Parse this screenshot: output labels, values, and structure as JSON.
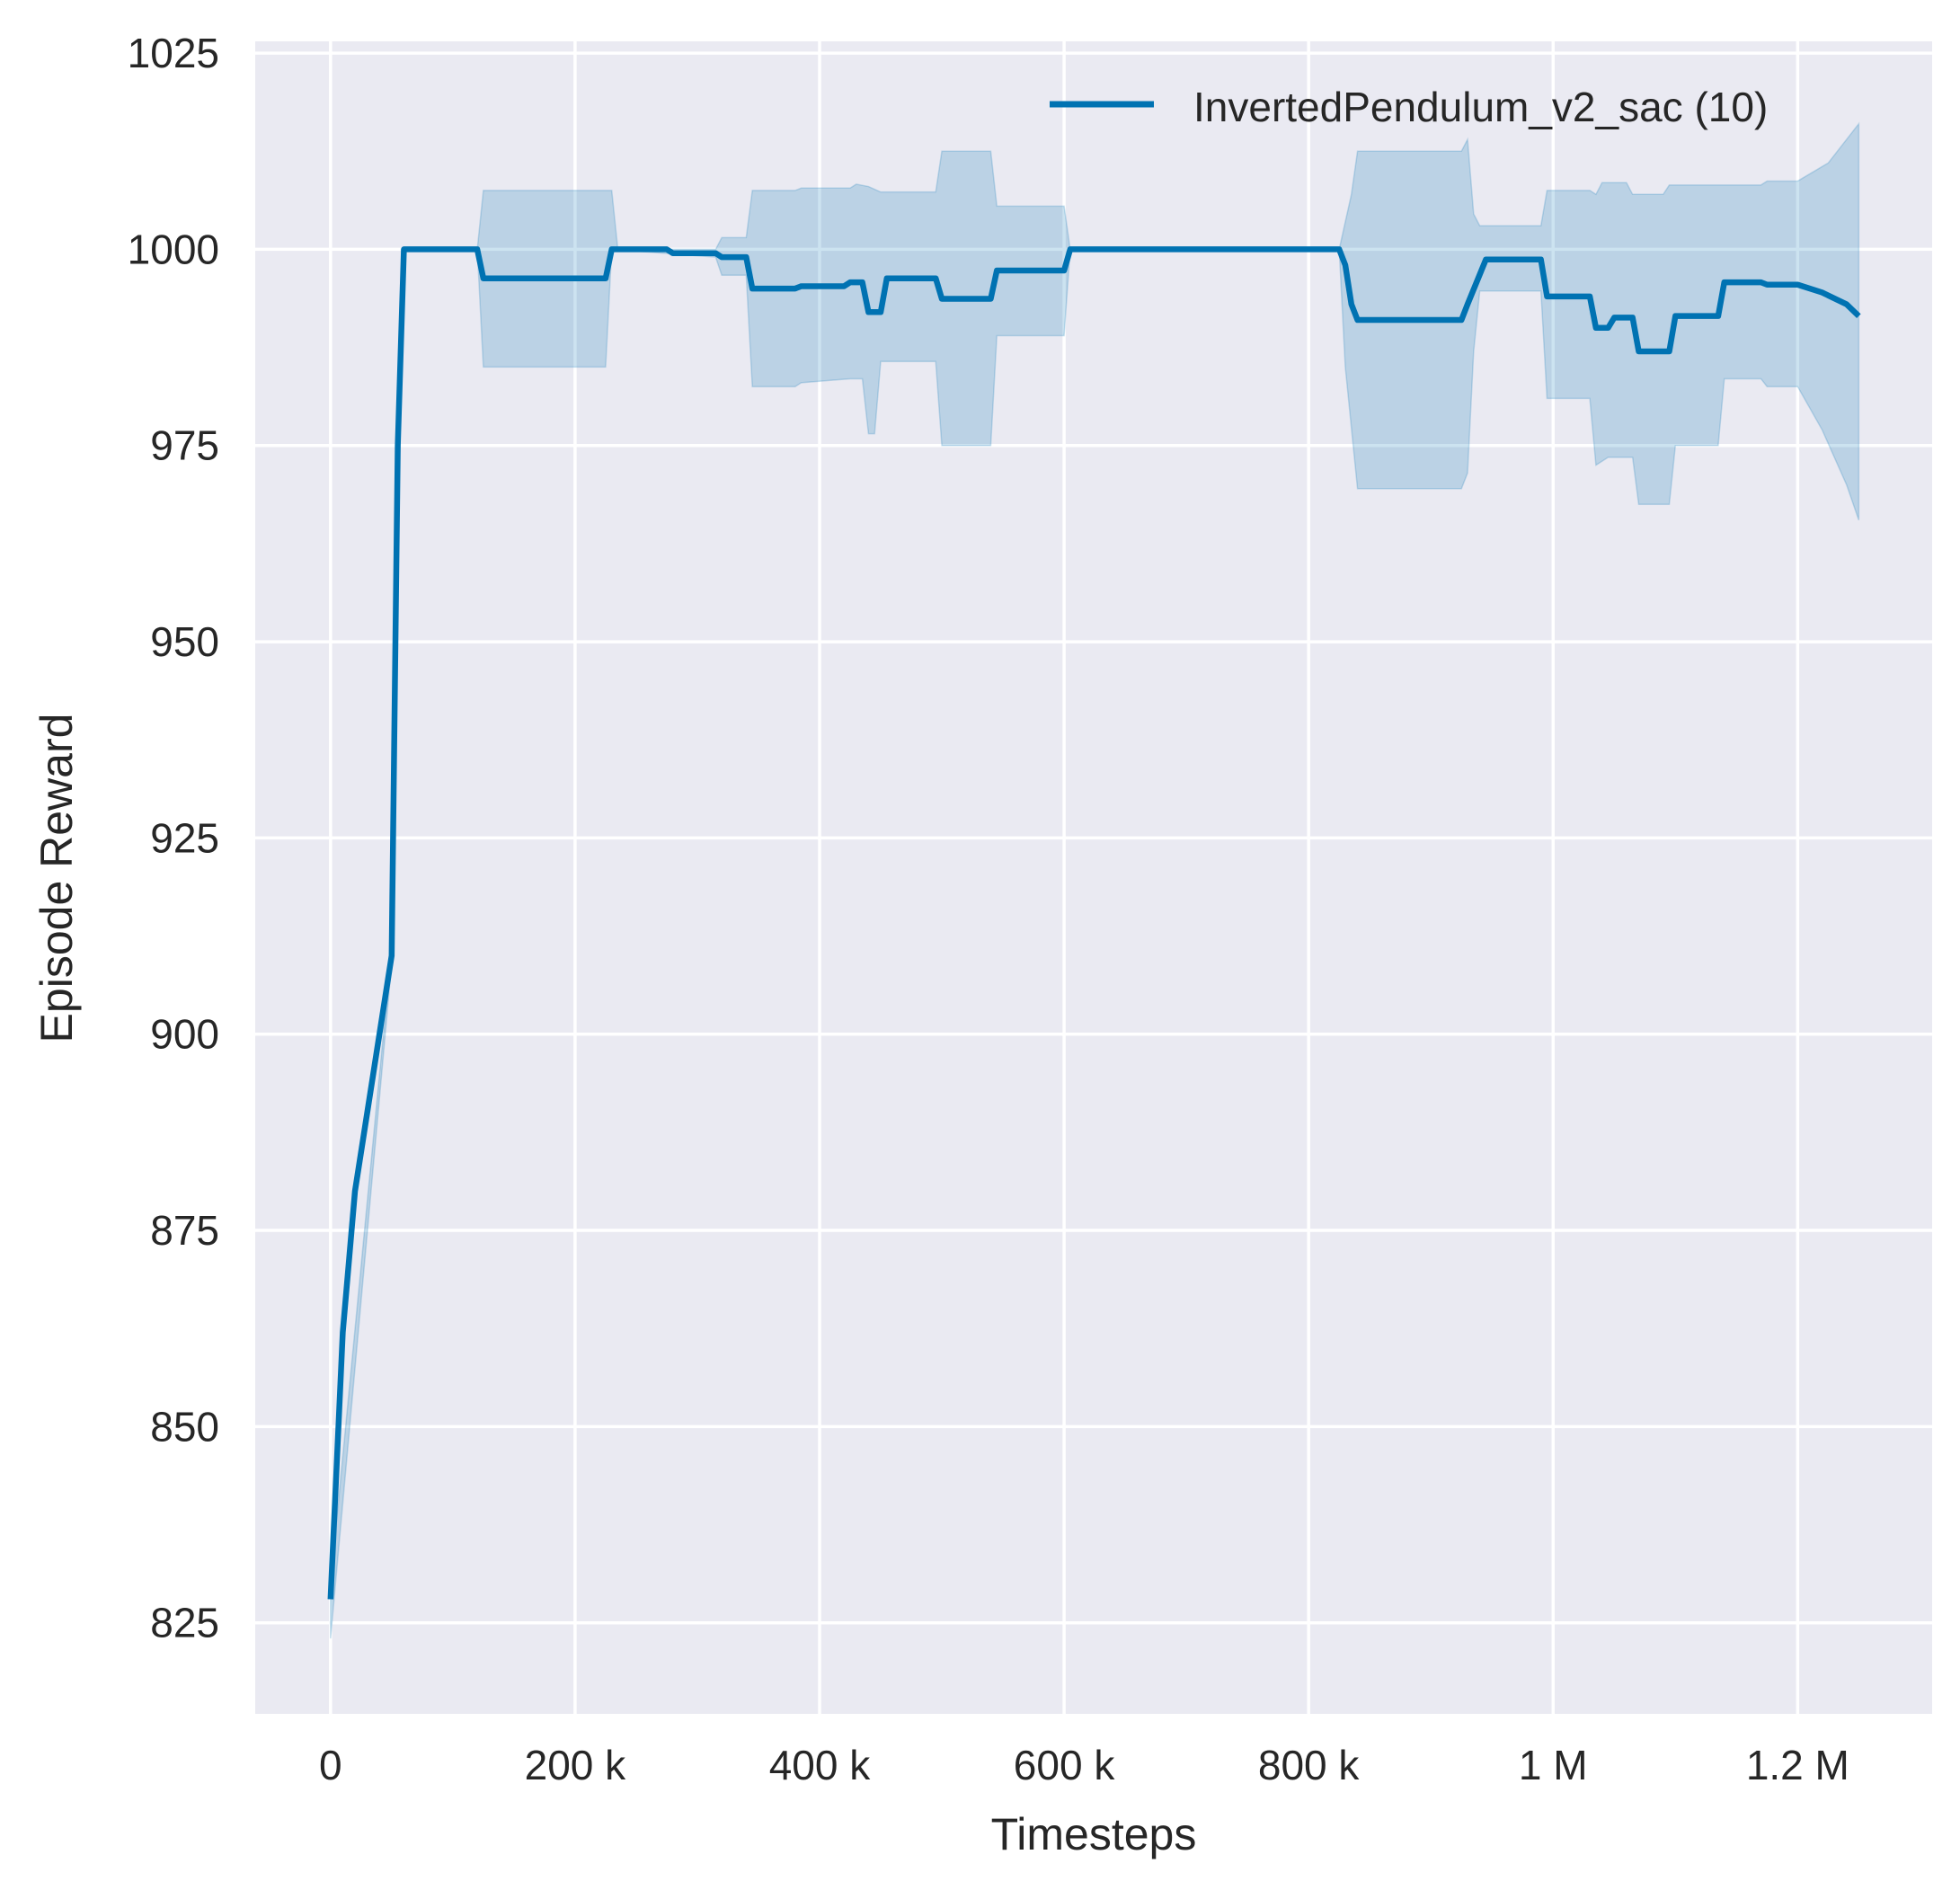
{
  "chart_data": {
    "type": "line",
    "title": "",
    "xlabel": "Timesteps",
    "ylabel": "Episode Reward",
    "xlim": [
      -61600,
      1310000
    ],
    "ylim": [
      813.4,
      1026.5
    ],
    "grid": true,
    "legend_position": "top-right",
    "background": "#eaeaf2",
    "x_ticks": [
      {
        "v": 0,
        "label": "0"
      },
      {
        "v": 200000,
        "label": "200 k"
      },
      {
        "v": 400000,
        "label": "400 k"
      },
      {
        "v": 600000,
        "label": "600 k"
      },
      {
        "v": 800000,
        "label": "800 k"
      },
      {
        "v": 1000000,
        "label": "1 M"
      },
      {
        "v": 1200000,
        "label": "1.2 M"
      }
    ],
    "y_ticks": [
      {
        "v": 825,
        "label": "825"
      },
      {
        "v": 850,
        "label": "850"
      },
      {
        "v": 875,
        "label": "875"
      },
      {
        "v": 900,
        "label": "900"
      },
      {
        "v": 925,
        "label": "925"
      },
      {
        "v": 950,
        "label": "950"
      },
      {
        "v": 975,
        "label": "975"
      },
      {
        "v": 1000,
        "label": "1000"
      },
      {
        "v": 1025,
        "label": "1025"
      }
    ],
    "series": [
      {
        "name": "InvertedPendulum_v2_sac (10)",
        "color": "#0072b2",
        "band_color": "#0072b2",
        "mean": [
          [
            0,
            828
          ],
          [
            5000,
            845
          ],
          [
            10000,
            862
          ],
          [
            20000,
            880
          ],
          [
            35000,
            895
          ],
          [
            50000,
            910
          ],
          [
            55000,
            975
          ],
          [
            60000,
            1000
          ],
          [
            120000,
            1000
          ],
          [
            125000,
            996.3
          ],
          [
            225000,
            996.3
          ],
          [
            230000,
            1000
          ],
          [
            275000,
            1000
          ],
          [
            280000,
            999.5
          ],
          [
            315000,
            999.5
          ],
          [
            320000,
            999
          ],
          [
            340000,
            999
          ],
          [
            345000,
            995
          ],
          [
            380000,
            995
          ],
          [
            385000,
            995.3
          ],
          [
            420000,
            995.3
          ],
          [
            425000,
            995.8
          ],
          [
            435000,
            995.8
          ],
          [
            440000,
            992
          ],
          [
            450000,
            992
          ],
          [
            455000,
            996.3
          ],
          [
            495000,
            996.3
          ],
          [
            500000,
            993.7
          ],
          [
            540000,
            993.7
          ],
          [
            545000,
            997.3
          ],
          [
            600000,
            997.3
          ],
          [
            605000,
            1000
          ],
          [
            825000,
            1000
          ],
          [
            830000,
            998
          ],
          [
            835000,
            993
          ],
          [
            840000,
            991
          ],
          [
            925000,
            991
          ],
          [
            930000,
            993
          ],
          [
            945000,
            998.7
          ],
          [
            990000,
            998.7
          ],
          [
            995000,
            994
          ],
          [
            1030000,
            994
          ],
          [
            1035000,
            990
          ],
          [
            1045000,
            990
          ],
          [
            1050000,
            991.3
          ],
          [
            1065000,
            991.3
          ],
          [
            1070000,
            987
          ],
          [
            1095000,
            987
          ],
          [
            1100000,
            991.5
          ],
          [
            1135000,
            991.5
          ],
          [
            1140000,
            995.8
          ],
          [
            1170000,
            995.8
          ],
          [
            1175000,
            995.5
          ],
          [
            1200000,
            995.5
          ],
          [
            1220000,
            994.5
          ],
          [
            1240000,
            993
          ],
          [
            1250000,
            991.5
          ]
        ],
        "upper": [
          [
            0,
            830
          ],
          [
            50000,
            911
          ],
          [
            55000,
            976
          ],
          [
            60000,
            1000
          ],
          [
            120000,
            1000
          ],
          [
            125000,
            1007.5
          ],
          [
            230000,
            1007.5
          ],
          [
            235000,
            1000
          ],
          [
            315000,
            1000
          ],
          [
            320000,
            1001.5
          ],
          [
            340000,
            1001.5
          ],
          [
            345000,
            1007.5
          ],
          [
            380000,
            1007.5
          ],
          [
            385000,
            1007.8
          ],
          [
            425000,
            1007.8
          ],
          [
            430000,
            1008.3
          ],
          [
            440000,
            1008
          ],
          [
            450000,
            1007.3
          ],
          [
            495000,
            1007.3
          ],
          [
            500000,
            1012.5
          ],
          [
            540000,
            1012.5
          ],
          [
            545000,
            1005.5
          ],
          [
            600000,
            1005.5
          ],
          [
            605000,
            1000
          ],
          [
            825000,
            1000
          ],
          [
            835000,
            1007
          ],
          [
            840000,
            1012.5
          ],
          [
            925000,
            1012.5
          ],
          [
            930000,
            1014
          ],
          [
            935000,
            1004.5
          ],
          [
            940000,
            1003
          ],
          [
            990000,
            1003
          ],
          [
            995000,
            1007.5
          ],
          [
            1030000,
            1007.5
          ],
          [
            1035000,
            1007
          ],
          [
            1040000,
            1008.5
          ],
          [
            1060000,
            1008.5
          ],
          [
            1065000,
            1007
          ],
          [
            1090000,
            1007
          ],
          [
            1095000,
            1008.2
          ],
          [
            1170000,
            1008.2
          ],
          [
            1175000,
            1008.7
          ],
          [
            1200000,
            1008.7
          ],
          [
            1225000,
            1011
          ],
          [
            1250000,
            1016
          ]
        ],
        "lower": [
          [
            0,
            823
          ],
          [
            50000,
            909
          ],
          [
            55000,
            974
          ],
          [
            60000,
            1000
          ],
          [
            120000,
            1000
          ],
          [
            125000,
            985
          ],
          [
            225000,
            985
          ],
          [
            230000,
            1000
          ],
          [
            315000,
            999
          ],
          [
            320000,
            996.7
          ],
          [
            340000,
            996.7
          ],
          [
            345000,
            982.5
          ],
          [
            380000,
            982.5
          ],
          [
            385000,
            983
          ],
          [
            425000,
            983.5
          ],
          [
            435000,
            983.5
          ],
          [
            440000,
            976.5
          ],
          [
            445000,
            976.5
          ],
          [
            450000,
            985.7
          ],
          [
            495000,
            985.7
          ],
          [
            500000,
            975
          ],
          [
            540000,
            975
          ],
          [
            545000,
            989
          ],
          [
            600000,
            989
          ],
          [
            605000,
            1000
          ],
          [
            825000,
            1000
          ],
          [
            830000,
            985
          ],
          [
            840000,
            969.5
          ],
          [
            925000,
            969.5
          ],
          [
            930000,
            971.5
          ],
          [
            935000,
            987
          ],
          [
            940000,
            994.7
          ],
          [
            990000,
            994.7
          ],
          [
            995000,
            981
          ],
          [
            1030000,
            981
          ],
          [
            1035000,
            972.5
          ],
          [
            1045000,
            973.5
          ],
          [
            1065000,
            973.5
          ],
          [
            1070000,
            967.5
          ],
          [
            1095000,
            967.5
          ],
          [
            1100000,
            975
          ],
          [
            1135000,
            975
          ],
          [
            1140000,
            983.5
          ],
          [
            1170000,
            983.5
          ],
          [
            1175000,
            982.5
          ],
          [
            1200000,
            982.5
          ],
          [
            1220000,
            977
          ],
          [
            1240000,
            970
          ],
          [
            1250000,
            965.5
          ]
        ]
      }
    ]
  }
}
